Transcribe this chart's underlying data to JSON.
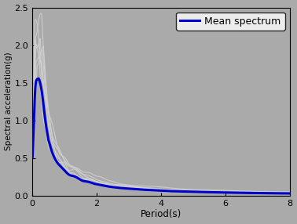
{
  "xlabel": "Period(s)",
  "ylabel": "Spectral acceleration(g)",
  "xlim": [
    0,
    8
  ],
  "ylim": [
    0,
    2.5
  ],
  "xticks": [
    0,
    2,
    4,
    6,
    8
  ],
  "yticks": [
    0.0,
    0.5,
    1.0,
    1.5,
    2.0,
    2.5
  ],
  "background_color": "#aaaaaa",
  "plot_bg_color": "#aaaaaa",
  "gray_color": "#d0d0d0",
  "mean_color": "#0000cc",
  "mean_linewidth": 2.2,
  "gray_linewidth": 0.8,
  "legend_label": "Mean spectrum",
  "legend_fontsize": 9
}
